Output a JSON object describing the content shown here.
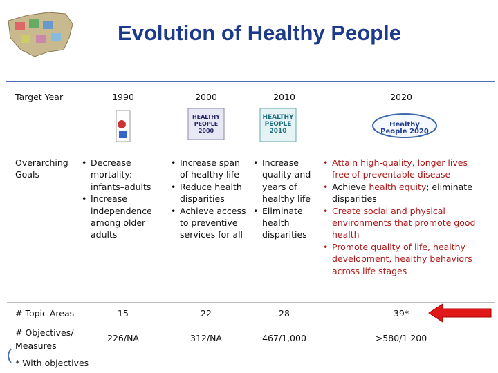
{
  "header": {
    "title": "Evolution of Healthy People"
  },
  "table": {
    "columns": [
      "Target Year",
      "1990",
      "2000",
      "2010",
      "2020"
    ],
    "logos": [
      "HEALTHY PEOPLE 2000",
      "HEALTHY PEOPLE 2010",
      "Healthy People 2020"
    ],
    "goals": {
      "label": "Overarching Goals",
      "columns": [
        [
          "Decrease mortality: infants–adults",
          "Increase independence among older adults"
        ],
        [
          "Increase span of healthy life",
          "Reduce health disparities",
          "Achieve access to preventive services for all"
        ],
        [
          "Increase quality and years of healthy life",
          "Eliminate health disparities"
        ],
        [
          "Attain high-quality, longer lives free of preventable disease",
          {
            "parts": [
              "Achieve",
              "health equity",
              "; eliminate disparities"
            ]
          },
          "Create social and physical environments that promote good health",
          "Promote quality of life, healthy development, healthy behaviors across life stages"
        ]
      ]
    },
    "topic_areas": {
      "label": "# Topic Areas",
      "values": [
        15,
        22,
        28,
        "39*"
      ]
    },
    "objectives": {
      "label": "# Objectives/ Measures",
      "values": [
        "226/NA",
        "312/NA",
        "467/1,000",
        ">580/1 200"
      ]
    }
  },
  "footnote": "* With objectives"
}
